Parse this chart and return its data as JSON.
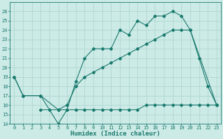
{
  "line1_x": [
    0,
    1,
    3,
    4,
    5,
    6,
    7,
    8,
    9,
    10,
    11,
    12,
    13,
    14,
    15,
    16,
    17,
    18,
    19,
    20,
    21,
    22,
    23
  ],
  "line1_y": [
    19,
    17,
    17,
    15.5,
    14,
    15.5,
    18.5,
    21,
    22,
    22,
    22,
    24,
    23.5,
    25,
    24.5,
    25.5,
    25.5,
    26,
    25.5,
    24,
    21,
    18,
    16
  ],
  "line2_x": [
    0,
    1,
    3,
    5,
    6,
    7,
    8,
    9,
    10,
    11,
    12,
    13,
    14,
    15,
    16,
    17,
    18,
    19,
    20,
    23
  ],
  "line2_y": [
    19,
    17,
    17,
    15.5,
    16,
    18,
    19,
    19.5,
    20,
    20.5,
    21,
    21.5,
    22,
    22.5,
    23,
    23.5,
    24,
    24,
    24,
    16
  ],
  "line3_x": [
    3,
    5,
    6,
    7,
    8,
    9,
    10,
    11,
    12,
    13,
    14,
    15,
    16,
    17,
    18,
    19,
    20,
    21,
    22,
    23
  ],
  "line3_y": [
    15.5,
    15.5,
    15.5,
    15.5,
    15.5,
    15.5,
    15.5,
    15.5,
    15.5,
    15.5,
    15.5,
    16,
    16,
    16,
    16,
    16,
    16,
    16,
    16,
    16
  ],
  "line_color": "#1a7a6e",
  "bg_color": "#cceae6",
  "grid_color": "#aad4ce",
  "xlabel": "Humidex (Indice chaleur)",
  "ylim": [
    14,
    27
  ],
  "xlim": [
    -0.5,
    23.5
  ],
  "yticks": [
    14,
    15,
    16,
    17,
    18,
    19,
    20,
    21,
    22,
    23,
    24,
    25,
    26
  ],
  "xticks": [
    0,
    1,
    2,
    3,
    4,
    5,
    6,
    7,
    8,
    9,
    10,
    11,
    12,
    13,
    14,
    15,
    16,
    17,
    18,
    19,
    20,
    21,
    22,
    23
  ],
  "tick_fontsize": 5,
  "xlabel_fontsize": 6.5,
  "marker_size": 2.0,
  "line_width": 0.8
}
